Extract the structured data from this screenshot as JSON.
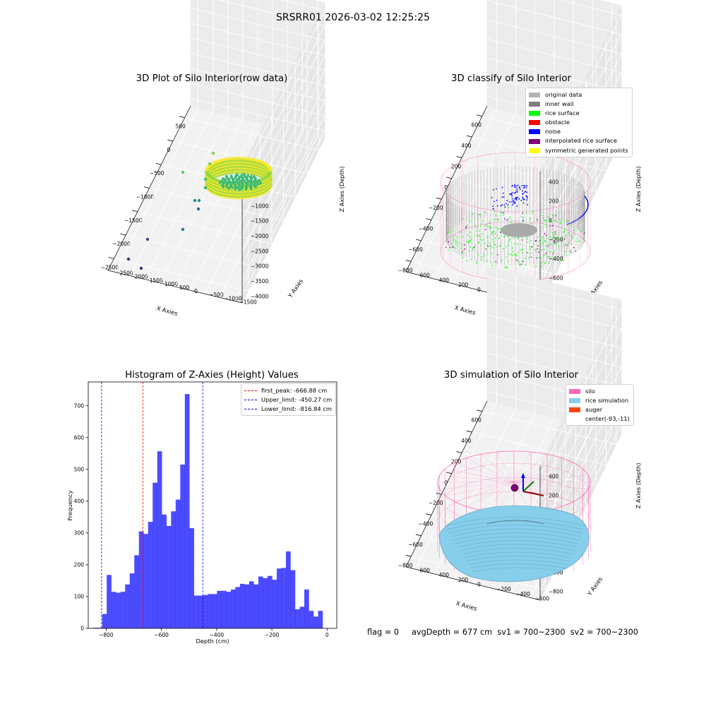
{
  "figure_title": "SRSRR01 2026-03-02 12:25:25",
  "footer": {
    "flag": "flag = 0",
    "avg_depth": "avgDepth = 677 cm",
    "sv1": "sv1 = 700~2300",
    "sv2": "sv2 = 700~2300"
  },
  "chart_data": [
    {
      "type": "scatter",
      "title": "3D Plot of Silo Interior(row data)",
      "xlabel": "X Axies",
      "ylabel": "Y Axies",
      "zlabel": "Z Axies (Depth)",
      "x_ticks": [
        "−2500",
        "−2000",
        "−1500",
        "−1000",
        "−500",
        "0",
        "500"
      ],
      "y_ticks": [
        "−1500",
        "−1000",
        "−500",
        "0",
        "500",
        "1000",
        "1500",
        "2000",
        "2500"
      ],
      "z_ticks": [
        "−4000",
        "−3500",
        "−3000",
        "−2500",
        "−2000",
        "−1500",
        "−1000",
        "−500",
        "0"
      ],
      "colormap": "viridis",
      "bulk": {
        "shape": "ring",
        "x_center": -150,
        "y_center": 500,
        "z_range": [
          -1900,
          -1200
        ],
        "colors": [
          "#fde725",
          "#8fd744",
          "#3bbb75"
        ]
      },
      "outliers": [
        {
          "x": -2200,
          "y": -1400,
          "z": -4000,
          "color": "#482878"
        },
        {
          "x": -1950,
          "y": -1300,
          "z": -3950,
          "color": "#472c7a"
        },
        {
          "x": -1700,
          "y": -1100,
          "z": -3400,
          "color": "#414487"
        },
        {
          "x": -1300,
          "y": -700,
          "z": -2700,
          "color": "#2a788e"
        },
        {
          "x": -950,
          "y": -250,
          "z": -2100,
          "color": "#31688e"
        },
        {
          "x": -900,
          "y": -150,
          "z": -1950,
          "color": "#21908d"
        },
        {
          "x": -880,
          "y": -100,
          "z": -2000,
          "color": "#21908d"
        },
        {
          "x": -700,
          "y": 300,
          "z": -1000,
          "color": "#5ec962"
        },
        {
          "x": -500,
          "y": 600,
          "z": -500,
          "color": "#6ece58"
        },
        {
          "x": -450,
          "y": 700,
          "z": -300,
          "color": "#7ad151"
        },
        {
          "x": -600,
          "y": 500,
          "z": -800,
          "color": "#4ac16d"
        },
        {
          "x": -550,
          "y": 400,
          "z": -1500,
          "color": "#35b779"
        }
      ]
    },
    {
      "type": "scatter",
      "title": "3D classify of Silo Interior",
      "xlabel": "X Axies",
      "ylabel": "Y Axies",
      "zlabel": "Z Axies (Depth)",
      "x_ticks": [
        "−800",
        "−600",
        "−400",
        "−200",
        "0",
        "200",
        "400",
        "600"
      ],
      "y_ticks": [
        "−600",
        "−400",
        "−200",
        "0",
        "200",
        "400",
        "600"
      ],
      "z_ticks": [
        "−800",
        "−600",
        "−400",
        "−200",
        "0",
        "200",
        "400"
      ],
      "legend": [
        {
          "label": "original data",
          "color": "#b3b3b3"
        },
        {
          "label": "inner wall",
          "color": "#808080"
        },
        {
          "label": "rice surface",
          "color": "#00ff00"
        },
        {
          "label": "obstacle",
          "color": "#ff0000"
        },
        {
          "label": "noise",
          "color": "#0000ff"
        },
        {
          "label": "interpolated rice surface",
          "color": "#800080"
        },
        {
          "label": "symmetric generated points",
          "color": "#ffff00"
        }
      ],
      "silo_wireframe_color": "#ff69b4"
    },
    {
      "type": "bar",
      "title": "Histogram of Z-Axies (Height) Values",
      "xlabel": "Depth (cm)",
      "ylabel": "Frequency",
      "xlim": [
        -865,
        35
      ],
      "ylim": [
        0,
        775
      ],
      "x_ticks": [
        -800,
        -600,
        -400,
        -200,
        0
      ],
      "y_ticks": [
        0,
        100,
        200,
        300,
        400,
        500,
        600,
        700
      ],
      "tick_labels_x": [
        "−800",
        "−600",
        "−400",
        "−200",
        "0"
      ],
      "bar_color": "#0000ff",
      "bar_alpha": 0.7,
      "bin_start": -848,
      "bin_width": 16.64,
      "values": [
        2,
        2,
        45,
        168,
        115,
        112,
        115,
        138,
        173,
        230,
        305,
        297,
        335,
        458,
        557,
        358,
        322,
        368,
        405,
        515,
        737,
        315,
        103,
        103,
        105,
        108,
        108,
        118,
        118,
        115,
        122,
        130,
        140,
        138,
        148,
        138,
        163,
        158,
        165,
        153,
        188,
        190,
        242,
        183,
        60,
        68,
        122,
        55,
        37,
        55
      ],
      "reference_lines": [
        {
          "label": "first_peak: -666.88 cm",
          "x": -666.88,
          "color": "#ff0000"
        },
        {
          "label": "Upper_limit: -450.27 cm",
          "x": -450.27,
          "color": "#0000ff"
        },
        {
          "label": "Lower_limit: -816.84 cm",
          "x": -816.84,
          "color": "#0000ff"
        }
      ]
    },
    {
      "type": "scatter",
      "title": "3D simulation of Silo Interior",
      "xlabel": "X Axies",
      "ylabel": "Y Axies",
      "zlabel": "Z Axies (Depth)",
      "x_ticks": [
        "−800",
        "−600",
        "−400",
        "−200",
        "0",
        "200",
        "400",
        "600"
      ],
      "y_ticks": [
        "−600",
        "−400",
        "−200",
        "0",
        "200",
        "400",
        "600"
      ],
      "z_ticks": [
        "−800",
        "−600",
        "−400",
        "−200",
        "0",
        "200",
        "400"
      ],
      "legend": [
        {
          "label": "silo",
          "color": "#ff69b4"
        },
        {
          "label": "rice simulation",
          "color": "#87ceeb"
        },
        {
          "label": "auger",
          "color": "#ff4500"
        },
        {
          "label": "center(-93,-11)",
          "color": ""
        }
      ]
    }
  ]
}
